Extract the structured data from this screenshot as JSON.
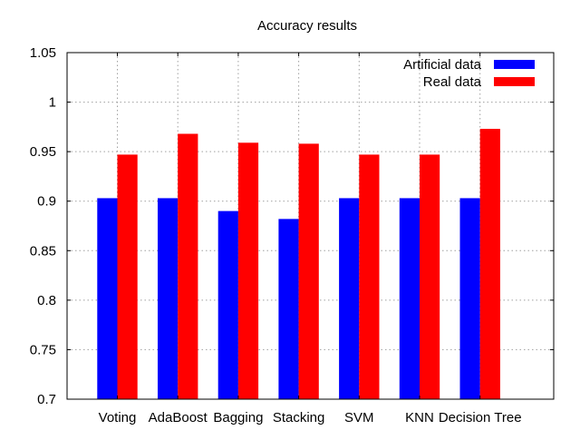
{
  "chart_data": {
    "type": "bar",
    "title": "Accuracy results",
    "xlabel": "",
    "ylabel": "",
    "categories": [
      "Voting",
      "AdaBoost",
      "Bagging",
      "Stacking",
      "SVM",
      "KNN",
      "Decision Tree"
    ],
    "series": [
      {
        "name": "Artificial data",
        "color": "#0000ff",
        "values": [
          0.903,
          0.903,
          0.89,
          0.882,
          0.903,
          0.903,
          0.903
        ]
      },
      {
        "name": "Real data",
        "color": "#ff0000",
        "values": [
          0.947,
          0.968,
          0.959,
          0.958,
          0.947,
          0.947,
          0.973
        ]
      }
    ],
    "ylim": [
      0.7,
      1.05
    ],
    "yticks": [
      "0.7",
      "0.75",
      "0.8",
      "0.85",
      "0.9",
      "0.95",
      "1",
      "1.05"
    ],
    "grid": true,
    "legend_position": "top-right"
  }
}
